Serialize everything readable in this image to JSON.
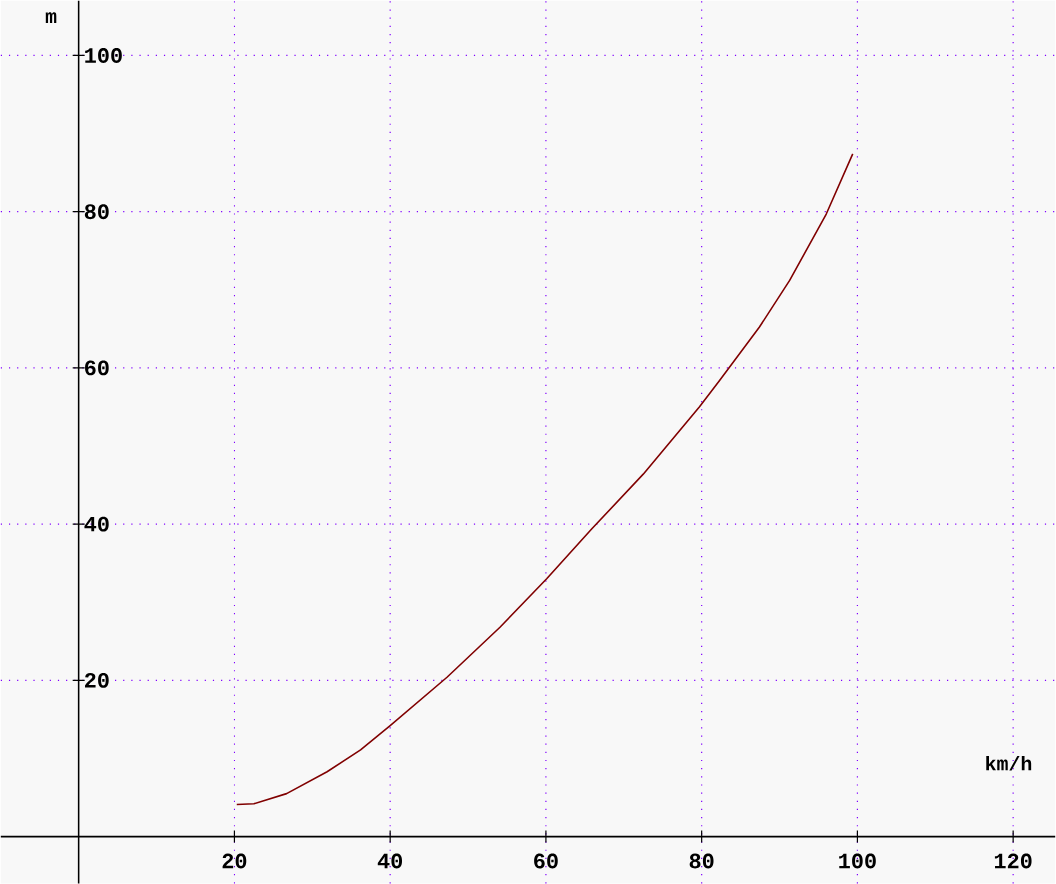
{
  "chart_data": {
    "type": "line",
    "xlabel": "km/h",
    "ylabel": "m",
    "x": [
      20.3,
      22.5,
      26.7,
      31.9,
      36.2,
      40,
      47.3,
      54.1,
      60.1,
      65.9,
      72.5,
      79.7,
      82.3,
      87.4,
      91.3,
      96,
      99.4
    ],
    "values": [
      4.1,
      4.2,
      5.5,
      8.3,
      11.1,
      14.2,
      20.4,
      26.8,
      33,
      39.4,
      46.4,
      55,
      58.4,
      65.2,
      71.2,
      79.7,
      87.4
    ],
    "color": "#800000",
    "xlim": [
      -10,
      125.4
    ],
    "ylim": [
      -6,
      107
    ],
    "xticks": [
      20,
      40,
      60,
      80,
      100,
      120
    ],
    "yticks": [
      20,
      40,
      60,
      80,
      100
    ],
    "grid": true,
    "marker": "none",
    "line_style": "solid"
  }
}
